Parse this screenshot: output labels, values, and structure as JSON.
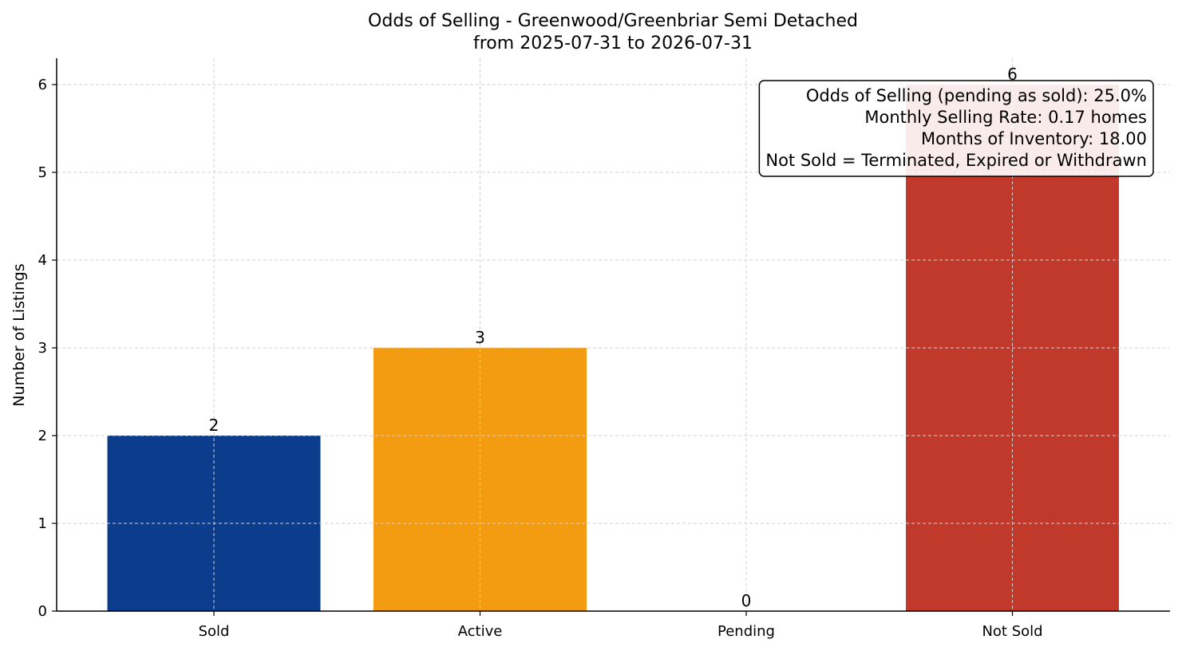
{
  "chart_data": {
    "type": "bar",
    "title_line1": "Odds of Selling - Greenwood/Greenbriar Semi Detached",
    "title_line2": "from 2025-07-31 to 2026-07-31",
    "xlabel": "",
    "ylabel": "Number of Listings",
    "categories": [
      "Sold",
      "Active",
      "Pending",
      "Not Sold"
    ],
    "values": [
      2,
      3,
      0,
      6
    ],
    "colors": [
      "#0c3c8c",
      "#f39c12",
      "#7f8c8d",
      "#c0392b"
    ],
    "ylim": [
      0,
      6.3
    ],
    "yticks": [
      "0",
      "1",
      "2",
      "3",
      "4",
      "5",
      "6"
    ],
    "grid": true,
    "annotation": {
      "placement": "top-right",
      "lines": [
        "Odds of Selling (pending as sold): 25.0%",
        "Monthly Selling Rate: 0.17 homes",
        "Months of Inventory: 18.00",
        "Not Sold = Terminated, Expired or Withdrawn"
      ]
    }
  }
}
